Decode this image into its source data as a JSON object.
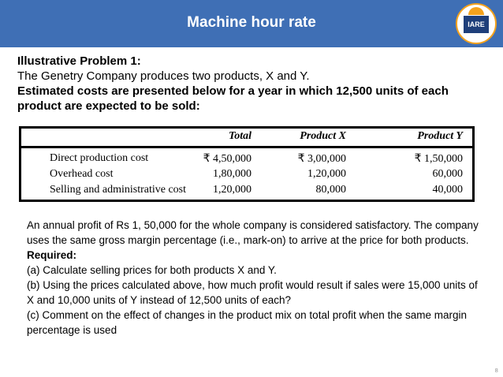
{
  "slide": {
    "title": "Machine hour rate",
    "logo_text": "IARE",
    "page_number": "8"
  },
  "intro": {
    "heading": "Illustrative Problem 1:",
    "line1": "The Genetry Company produces two products, X and Y.",
    "line2": "Estimated costs are presented below for a year in which 12,500 units of each product are expected to be sold:"
  },
  "cost_table": {
    "headers": [
      "",
      "Total",
      "Product X",
      "Product Y"
    ],
    "rows": [
      {
        "label": "Direct production cost",
        "total": "₹ 4,50,000",
        "x": "₹ 3,00,000",
        "y": "₹ 1,50,000"
      },
      {
        "label": "Overhead cost",
        "total": "1,80,000",
        "x": "1,20,000",
        "y": "60,000"
      },
      {
        "label": "Selling and administrative cost",
        "total": "1,20,000",
        "x": "80,000",
        "y": "40,000"
      }
    ]
  },
  "problem": {
    "p1": "An annual profit of Rs 1, 50,000 for the whole company is considered satisfactory. The company uses the same gross margin percentage (i.e., mark-on) to arrive at the price for both products.",
    "required": "Required:",
    "a": "(a) Calculate selling prices for both products X and Y.",
    "b": "(b) Using the prices calculated above, how much profit would result if sales were 15,000 units of X and 10,000 units of Y instead of 12,500 units of each?",
    "c": "(c) Comment on the effect of changes in the product mix on total profit when the same margin percentage is used"
  }
}
